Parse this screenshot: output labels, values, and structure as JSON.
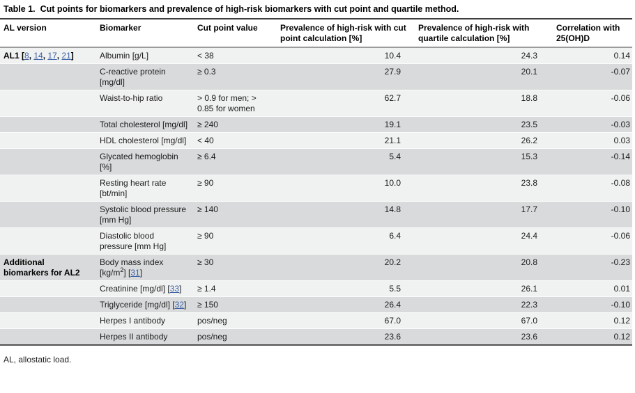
{
  "page": {
    "title": "Table 1.  Cut points for biomarkers and prevalence of high-risk biomarkers with cut point and quartile method.",
    "footnote": "AL, allostatic load."
  },
  "colors": {
    "link_blue": "#3c63a8",
    "row_light": "#f0f1f1",
    "row_dark": "#d8dadb"
  },
  "table": {
    "columns": [
      "AL version",
      "Biomarker",
      "Cut point value",
      "Prevalence of high-risk with cut point calculation [%]",
      "Prevalence of high-risk with quartile calculation [%]",
      "Correlation with 25(OH)D"
    ],
    "rows": [
      {
        "al": [
          {
            "t": "AL1 ["
          },
          {
            "t": "8",
            "s": "a"
          },
          {
            "t": ", "
          },
          {
            "t": "14",
            "s": "a"
          },
          {
            "t": ", "
          },
          {
            "t": "17",
            "s": "a"
          },
          {
            "t": ", "
          },
          {
            "t": "21",
            "s": "a"
          },
          {
            "t": "]"
          }
        ],
        "biomarker": [
          {
            "t": "Albumin [g/L]"
          }
        ],
        "cut_point": "< 38",
        "prevalence_cut_point": "10.4",
        "prevalence_quartile": "24.3",
        "correlation_25ohd": "0.14"
      },
      {
        "al": [],
        "biomarker": [
          {
            "t": "C-reactive protein [mg/dl]"
          }
        ],
        "cut_point": "≥ 0.3",
        "prevalence_cut_point": "27.9",
        "prevalence_quartile": "20.1",
        "correlation_25ohd": "-0.07"
      },
      {
        "al": [],
        "biomarker": [
          {
            "t": "Waist-to-hip ratio"
          }
        ],
        "cut_point": "> 0.9 for men; > 0.85 for women",
        "prevalence_cut_point": "62.7",
        "prevalence_quartile": "18.8",
        "correlation_25ohd": "-0.06"
      },
      {
        "al": [],
        "biomarker": [
          {
            "t": "Total cholesterol [mg/dl]"
          }
        ],
        "cut_point": "≥ 240",
        "prevalence_cut_point": "19.1",
        "prevalence_quartile": "23.5",
        "correlation_25ohd": "-0.03"
      },
      {
        "al": [],
        "biomarker": [
          {
            "t": "HDL cholesterol [mg/dl]"
          }
        ],
        "cut_point": "< 40",
        "prevalence_cut_point": "21.1",
        "prevalence_quartile": "26.2",
        "correlation_25ohd": "0.03"
      },
      {
        "al": [],
        "biomarker": [
          {
            "t": "Glycated hemoglobin [%]"
          }
        ],
        "cut_point": "≥ 6.4",
        "prevalence_cut_point": "5.4",
        "prevalence_quartile": "15.3",
        "correlation_25ohd": "-0.14"
      },
      {
        "al": [],
        "biomarker": [
          {
            "t": "Resting heart rate [bt/min]"
          }
        ],
        "cut_point": "≥ 90",
        "prevalence_cut_point": "10.0",
        "prevalence_quartile": "23.8",
        "correlation_25ohd": "-0.08"
      },
      {
        "al": [],
        "biomarker": [
          {
            "t": "Systolic blood pressure [mm Hg]"
          }
        ],
        "cut_point": "≥ 140",
        "prevalence_cut_point": "14.8",
        "prevalence_quartile": "17.7",
        "correlation_25ohd": "-0.10"
      },
      {
        "al": [],
        "biomarker": [
          {
            "t": "Diastolic blood pressure [mm Hg]"
          }
        ],
        "cut_point": "≥ 90",
        "prevalence_cut_point": "6.4",
        "prevalence_quartile": "24.4",
        "correlation_25ohd": "-0.06"
      },
      {
        "al": [
          {
            "t": "Additional biomarkers for AL2"
          }
        ],
        "biomarker": [
          {
            "t": "Body mass index [kg/m"
          },
          {
            "t": "2",
            "s": "sup"
          },
          {
            "t": "] ["
          },
          {
            "t": "31",
            "s": "a"
          },
          {
            "t": "]"
          }
        ],
        "cut_point": "≥ 30",
        "prevalence_cut_point": "20.2",
        "prevalence_quartile": "20.8",
        "correlation_25ohd": "-0.23"
      },
      {
        "al": [],
        "biomarker": [
          {
            "t": "Creatinine [mg/dl] ["
          },
          {
            "t": "33",
            "s": "a"
          },
          {
            "t": "]"
          }
        ],
        "cut_point": "≥ 1.4",
        "prevalence_cut_point": "5.5",
        "prevalence_quartile": "26.1",
        "correlation_25ohd": "0.01"
      },
      {
        "al": [],
        "biomarker": [
          {
            "t": "Triglyceride [mg/dl] ["
          },
          {
            "t": "32",
            "s": "a"
          },
          {
            "t": "]"
          }
        ],
        "cut_point": "≥ 150",
        "prevalence_cut_point": "26.4",
        "prevalence_quartile": "22.3",
        "correlation_25ohd": "-0.10"
      },
      {
        "al": [],
        "biomarker": [
          {
            "t": "Herpes I antibody"
          }
        ],
        "cut_point": "pos/neg",
        "prevalence_cut_point": "67.0",
        "prevalence_quartile": "67.0",
        "correlation_25ohd": "0.12"
      },
      {
        "al": [],
        "biomarker": [
          {
            "t": "Herpes II antibody"
          }
        ],
        "cut_point": "pos/neg",
        "prevalence_cut_point": "23.6",
        "prevalence_quartile": "23.6",
        "correlation_25ohd": "0.12"
      }
    ]
  }
}
